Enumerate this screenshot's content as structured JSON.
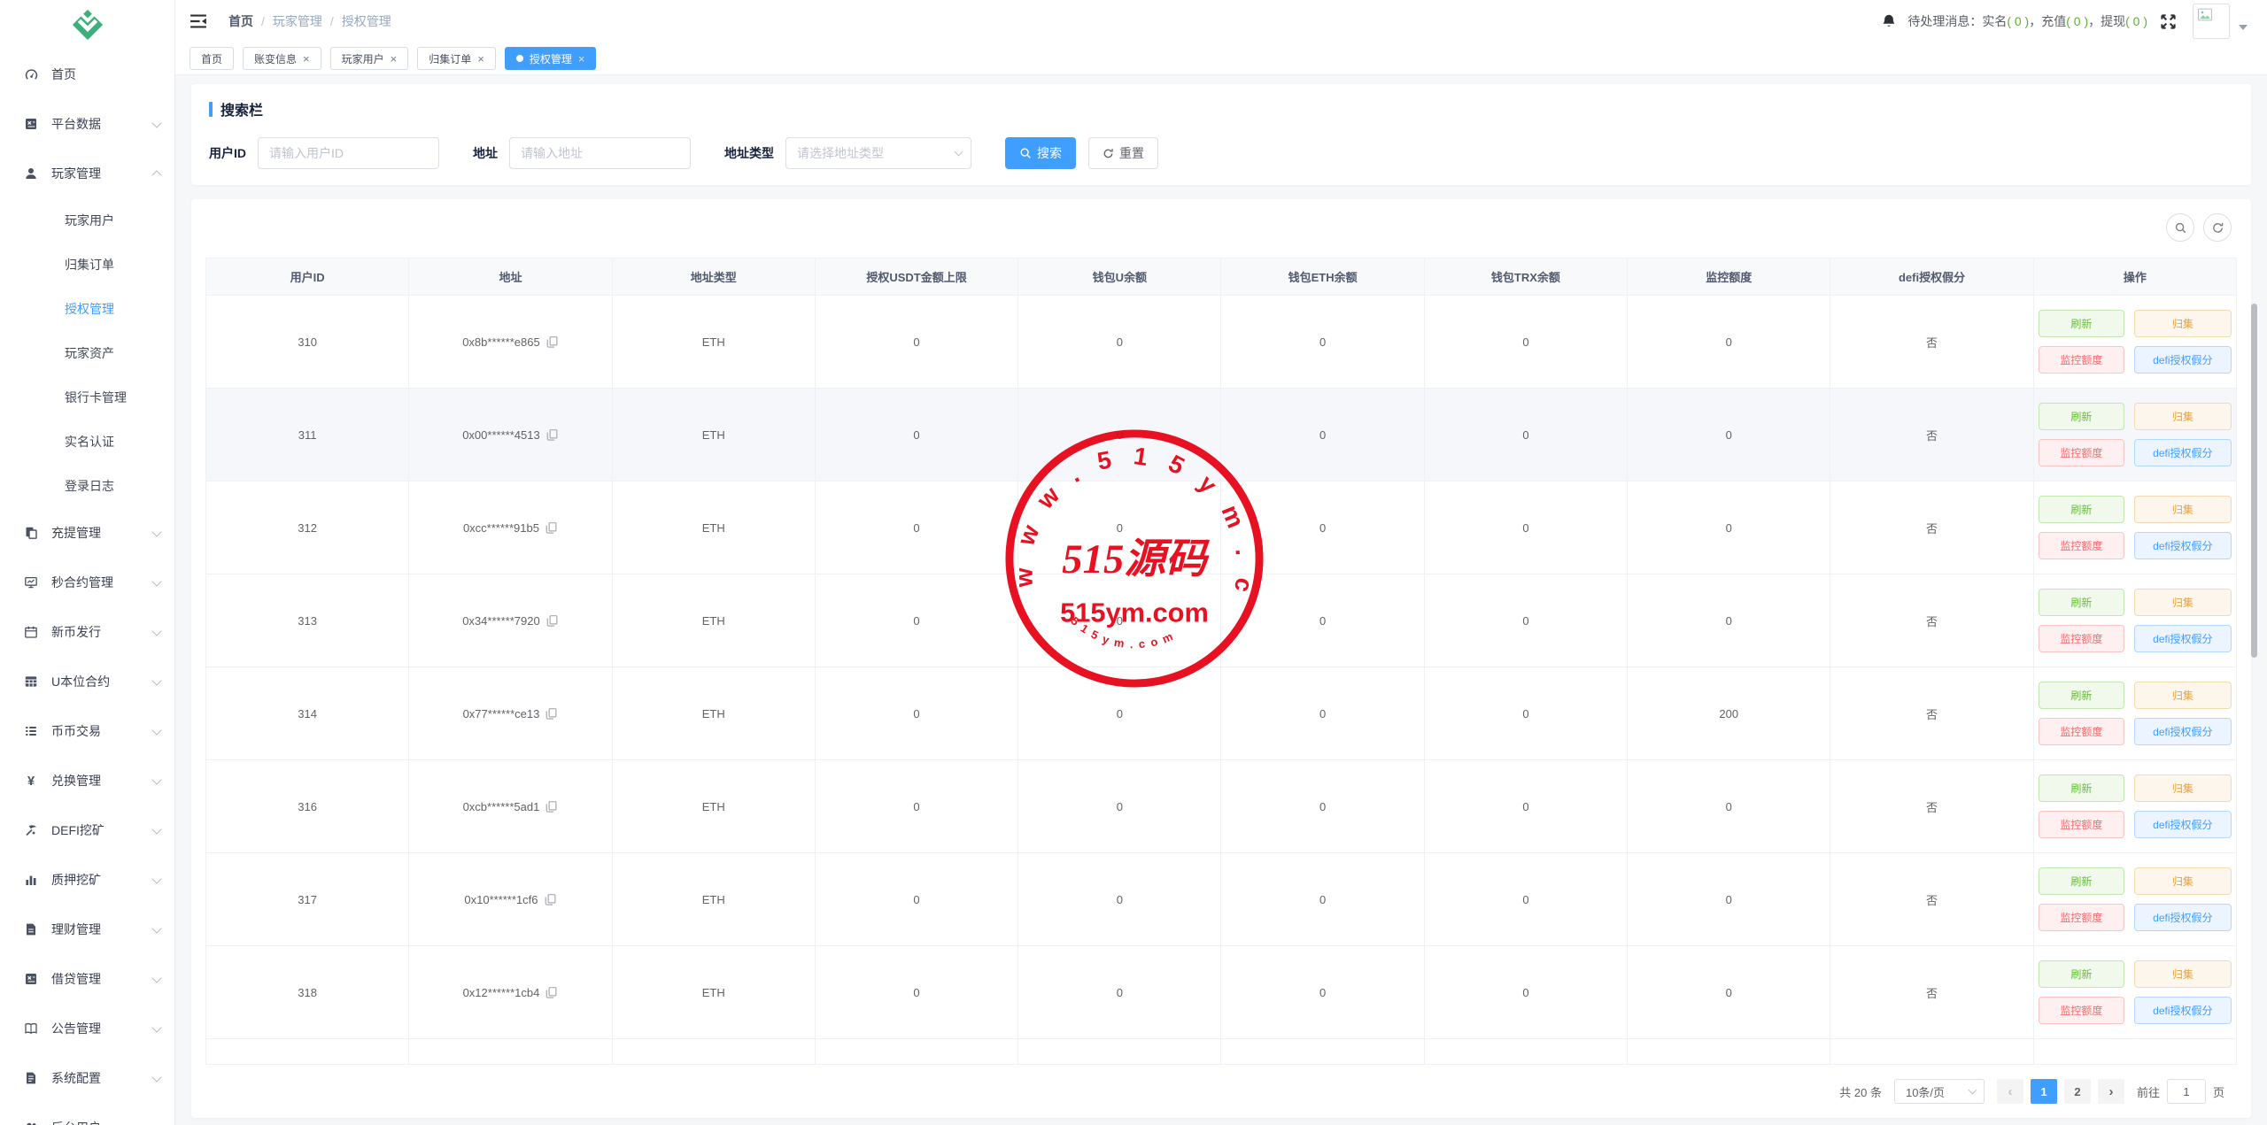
{
  "colors": {
    "primary": "#409eff",
    "success": "#67c23a",
    "warning": "#e6a23c",
    "danger": "#f56c6c",
    "stamp_red": "#e60012",
    "logo_green": "#3eaf7c"
  },
  "sidebar": {
    "items": [
      {
        "label": "首页",
        "icon": "dashboard-icon",
        "expandable": false
      },
      {
        "label": "平台数据",
        "icon": "platform-data-icon",
        "expandable": true
      },
      {
        "label": "玩家管理",
        "icon": "player-icon",
        "expandable": true,
        "expanded": true,
        "children": [
          {
            "label": "玩家用户",
            "active": false
          },
          {
            "label": "归集订单",
            "active": false
          },
          {
            "label": "授权管理",
            "active": true
          },
          {
            "label": "玩家资产",
            "active": false
          },
          {
            "label": "银行卡管理",
            "active": false
          },
          {
            "label": "实名认证",
            "active": false
          },
          {
            "label": "登录日志",
            "active": false
          }
        ]
      },
      {
        "label": "充提管理",
        "icon": "recharge-icon",
        "expandable": true
      },
      {
        "label": "秒合约管理",
        "icon": "sec-contract-icon",
        "expandable": true
      },
      {
        "label": "新币发行",
        "icon": "new-coin-icon",
        "expandable": true
      },
      {
        "label": "U本位合约",
        "icon": "u-contract-icon",
        "expandable": true
      },
      {
        "label": "币币交易",
        "icon": "coin-trade-icon",
        "expandable": true
      },
      {
        "label": "兑换管理",
        "icon": "exchange-icon",
        "expandable": true
      },
      {
        "label": "DEFI挖矿",
        "icon": "defi-icon",
        "expandable": true
      },
      {
        "label": "质押挖矿",
        "icon": "stake-icon",
        "expandable": true
      },
      {
        "label": "理财管理",
        "icon": "finance-icon",
        "expandable": true
      },
      {
        "label": "借贷管理",
        "icon": "loan-icon",
        "expandable": true
      },
      {
        "label": "公告管理",
        "icon": "notice-icon",
        "expandable": true
      },
      {
        "label": "系统配置",
        "icon": "config-icon",
        "expandable": true
      },
      {
        "label": "后台用户",
        "icon": "admin-users-icon",
        "expandable": true
      }
    ]
  },
  "topbar": {
    "breadcrumb": [
      "首页",
      "玩家管理",
      "授权管理"
    ],
    "messages_label": "待处理消息：",
    "messages": [
      {
        "label": "实名",
        "count": "( 0 )"
      },
      {
        "label": "充值",
        "count": "( 0 )"
      },
      {
        "label": "提现",
        "count": "( 0 )"
      }
    ],
    "messages_sep": "，"
  },
  "tabs": [
    {
      "label": "首页",
      "closable": false,
      "active": false
    },
    {
      "label": "账变信息",
      "closable": true,
      "active": false
    },
    {
      "label": "玩家用户",
      "closable": true,
      "active": false
    },
    {
      "label": "归集订单",
      "closable": true,
      "active": false
    },
    {
      "label": "授权管理",
      "closable": true,
      "active": true
    }
  ],
  "search": {
    "title": "搜索栏",
    "fields": [
      {
        "label": "用户ID",
        "placeholder": "请输入用户ID",
        "type": "input"
      },
      {
        "label": "地址",
        "placeholder": "请输入地址",
        "type": "input"
      },
      {
        "label": "地址类型",
        "placeholder": "请选择地址类型",
        "type": "select"
      }
    ],
    "search_label": "搜索",
    "reset_label": "重置"
  },
  "table": {
    "columns": [
      "用户ID",
      "地址",
      "地址类型",
      "授权USDT金额上限",
      "钱包U余额",
      "钱包ETH余额",
      "钱包TRX余额",
      "监控额度",
      "defi授权假分",
      "操作"
    ],
    "action_labels": [
      "刷新",
      "归集",
      "监控额度",
      "defi授权假分"
    ],
    "rows": [
      {
        "user_id": "310",
        "address": "0x8b******e865",
        "type": "ETH",
        "usdt_limit": "0",
        "u_balance": "0",
        "eth_balance": "0",
        "trx_balance": "0",
        "monitor_quota": "0",
        "defi_auth": "否",
        "highlight": false,
        "partial": false
      },
      {
        "user_id": "311",
        "address": "0x00******4513",
        "type": "ETH",
        "usdt_limit": "0",
        "u_balance": "0",
        "eth_balance": "0",
        "trx_balance": "0",
        "monitor_quota": "0",
        "defi_auth": "否",
        "highlight": true,
        "partial": false
      },
      {
        "user_id": "312",
        "address": "0xcc******91b5",
        "type": "ETH",
        "usdt_limit": "0",
        "u_balance": "0",
        "eth_balance": "0",
        "trx_balance": "0",
        "monitor_quota": "0",
        "defi_auth": "否",
        "highlight": false,
        "partial": false
      },
      {
        "user_id": "313",
        "address": "0x34******7920",
        "type": "ETH",
        "usdt_limit": "0",
        "u_balance": "0",
        "eth_balance": "0",
        "trx_balance": "0",
        "monitor_quota": "0",
        "defi_auth": "否",
        "highlight": false,
        "partial": false
      },
      {
        "user_id": "314",
        "address": "0x77******ce13",
        "type": "ETH",
        "usdt_limit": "0",
        "u_balance": "0",
        "eth_balance": "0",
        "trx_balance": "0",
        "monitor_quota": "200",
        "defi_auth": "否",
        "highlight": false,
        "partial": false
      },
      {
        "user_id": "316",
        "address": "0xcb******5ad1",
        "type": "ETH",
        "usdt_limit": "0",
        "u_balance": "0",
        "eth_balance": "0",
        "trx_balance": "0",
        "monitor_quota": "0",
        "defi_auth": "否",
        "highlight": false,
        "partial": false
      },
      {
        "user_id": "317",
        "address": "0x10******1cf6",
        "type": "ETH",
        "usdt_limit": "0",
        "u_balance": "0",
        "eth_balance": "0",
        "trx_balance": "0",
        "monitor_quota": "0",
        "defi_auth": "否",
        "highlight": false,
        "partial": false
      },
      {
        "user_id": "318",
        "address": "0x12******1cb4",
        "type": "ETH",
        "usdt_limit": "0",
        "u_balance": "0",
        "eth_balance": "0",
        "trx_balance": "0",
        "monitor_quota": "0",
        "defi_auth": "否",
        "highlight": false,
        "partial": false
      },
      {
        "user_id": "",
        "address": "",
        "type": "",
        "usdt_limit": "",
        "u_balance": "",
        "eth_balance": "",
        "trx_balance": "",
        "monitor_quota": "",
        "defi_auth": "",
        "highlight": false,
        "partial": true
      }
    ]
  },
  "pagination": {
    "total": "共 20 条",
    "page_size": "10条/页",
    "prev": "‹",
    "next": "›",
    "pages": [
      "1",
      "2"
    ],
    "active_page": "1",
    "goto_label": "前往",
    "goto_value": "1",
    "page_unit": "页"
  },
  "watermark": {
    "top_arc": "www.515ym.com",
    "center": "515源码",
    "sub": "515ym.com",
    "bottom_arc": "515ym.com"
  }
}
